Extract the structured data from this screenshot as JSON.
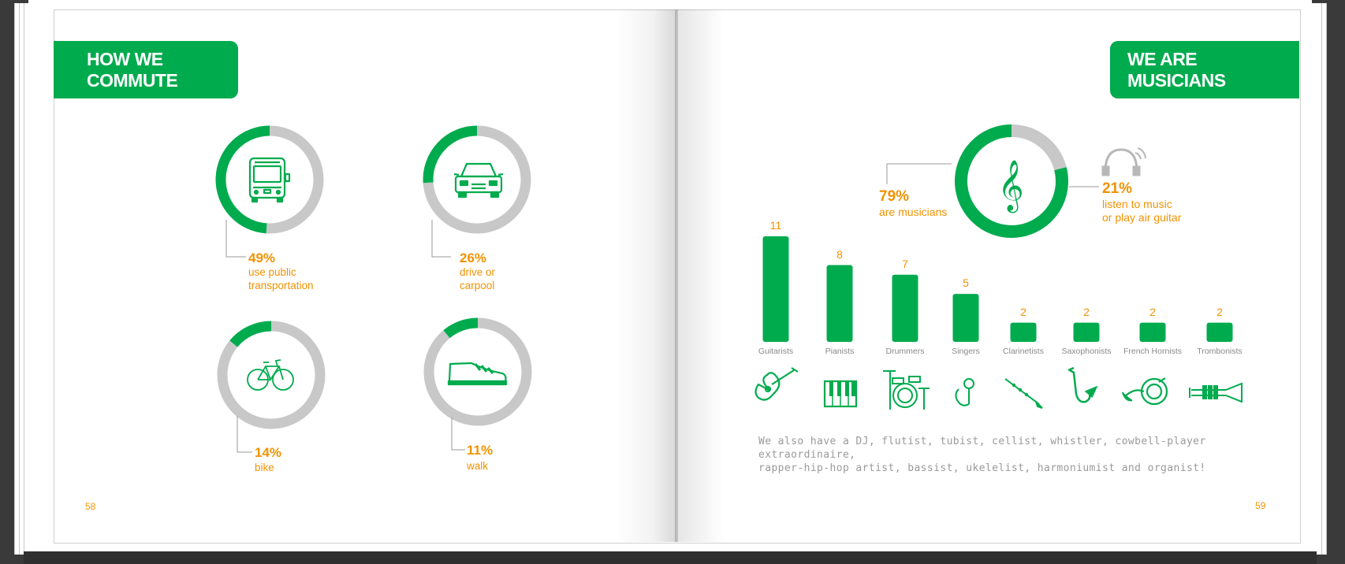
{
  "left_page": {
    "title": "HOW WE COMMUTE",
    "page_number": "58",
    "items": [
      {
        "icon": "bus-icon",
        "percent_label": "49%",
        "description": "use public transportation",
        "line1": "use public",
        "line2": "transportation"
      },
      {
        "icon": "car-icon",
        "percent_label": "26%",
        "description": "drive or carpool",
        "line1": "drive or",
        "line2": "carpool"
      },
      {
        "icon": "bicycle-icon",
        "percent_label": "14%",
        "description": "bike",
        "line1": "bike",
        "line2": ""
      },
      {
        "icon": "sneaker-icon",
        "percent_label": "11%",
        "description": "walk",
        "line1": "walk",
        "line2": ""
      }
    ]
  },
  "right_page": {
    "title": "WE ARE MUSICIANS",
    "page_number": "59",
    "musicians": {
      "percent_label": "79%",
      "label": "are musicians",
      "icon": "treble-clef-icon"
    },
    "listeners": {
      "percent_label": "21%",
      "line1": "listen to music",
      "line2": "or play air guitar",
      "icon": "headphones-icon"
    },
    "footnote_line1": "We also have a DJ, flutist, tubist, cellist, whistler, cowbell-player extraordinaire,",
    "footnote_line2": "rapper-hip-hop artist, bassist, ukelelist, harmoniumist and organist!"
  },
  "colors": {
    "green": "#00ab4e",
    "gray": "#c8c8c8",
    "orange": "#f39200",
    "label_gray": "#8a8a8a"
  },
  "chart_data": [
    {
      "type": "pie",
      "name": "public transportation",
      "values": [
        49,
        51
      ]
    },
    {
      "type": "pie",
      "name": "drive or carpool",
      "values": [
        26,
        74
      ]
    },
    {
      "type": "pie",
      "name": "bike",
      "values": [
        14,
        86
      ]
    },
    {
      "type": "pie",
      "name": "walk",
      "values": [
        11,
        89
      ]
    },
    {
      "type": "pie",
      "name": "musicians",
      "values": [
        79,
        21
      ]
    },
    {
      "type": "bar",
      "categories": [
        "Guitarists",
        "Pianists",
        "Drummers",
        "Singers",
        "Clarinetists",
        "Saxophonists",
        "French Hornists",
        "Trombonists"
      ],
      "values": [
        11,
        8,
        7,
        5,
        2,
        2,
        2,
        2
      ],
      "icons": [
        "guitar-icon",
        "piano-keys-icon",
        "drum-kit-icon",
        "microphone-icon",
        "clarinet-icon",
        "saxophone-icon",
        "french-horn-icon",
        "trumpet-icon"
      ],
      "ylim": [
        0,
        11
      ]
    }
  ]
}
